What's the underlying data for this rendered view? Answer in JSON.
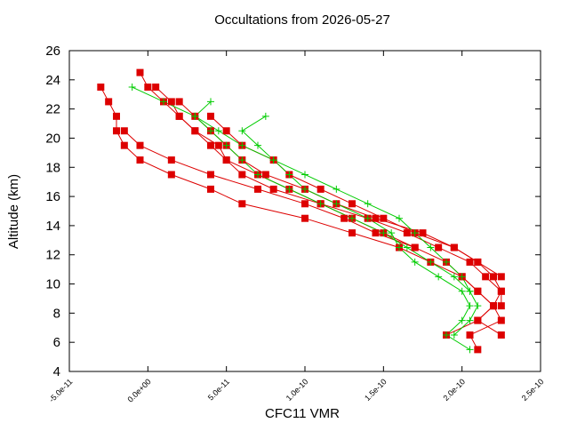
{
  "chart_data": {
    "type": "profile",
    "title": "Occultations from 2026-05-27",
    "xlabel": "CFC11 VMR",
    "ylabel": "Altitude (km)",
    "xlim": [
      -5e-11,
      2.5e-10
    ],
    "ylim": [
      4,
      26
    ],
    "xticks": [
      {
        "value": -5e-11,
        "label": "-5.0e-11"
      },
      {
        "value": 0,
        "label": "0.0e+00"
      },
      {
        "value": 5e-11,
        "label": "5.0e-11"
      },
      {
        "value": 1e-10,
        "label": "1.0e-10"
      },
      {
        "value": 1.5e-10,
        "label": "1.5e-10"
      },
      {
        "value": 2e-10,
        "label": "2.0e-10"
      },
      {
        "value": 2.5e-10,
        "label": "2.5e-10"
      }
    ],
    "yticks": [
      4,
      6,
      8,
      10,
      12,
      14,
      16,
      18,
      20,
      22,
      24,
      26
    ],
    "grid": false,
    "series": [
      {
        "color": "#dd0000",
        "marker": "square",
        "x": [
          -5e-12,
          0.0,
          1e-11,
          2e-11,
          3e-11,
          4e-11,
          5e-11,
          7e-11,
          9e-11,
          1.1e-10,
          1.3e-10,
          1.5e-10,
          1.7e-10,
          1.9e-10,
          2e-10,
          2.1e-10,
          2.2e-10,
          2.1e-10,
          1.9e-10
        ],
        "y": [
          24.5,
          23.5,
          22.5,
          21.5,
          20.5,
          19.5,
          18.5,
          17.5,
          16.5,
          15.5,
          14.5,
          13.5,
          12.5,
          11.5,
          10.5,
          9.5,
          8.5,
          7.5,
          6.5
        ]
      },
      {
        "color": "#dd0000",
        "marker": "square",
        "x": [
          -3e-11,
          -2.5e-11,
          -2e-11,
          -2e-11,
          -1.5e-11,
          -5e-12,
          1.5e-11,
          4e-11,
          6e-11,
          1e-10,
          1.3e-10,
          1.6e-10,
          1.8e-10,
          2e-10,
          2.1e-10,
          2.2e-10,
          2.25e-10,
          2.05e-10,
          2.1e-10
        ],
        "y": [
          23.5,
          22.5,
          21.5,
          20.5,
          19.5,
          18.5,
          17.5,
          16.5,
          15.5,
          14.5,
          13.5,
          12.5,
          11.5,
          10.5,
          9.5,
          8.5,
          7.5,
          6.5,
          5.5
        ]
      },
      {
        "color": "#dd0000",
        "marker": "square",
        "x": [
          5e-12,
          1.5e-11,
          2e-11,
          3e-11,
          4.5e-11,
          5e-11,
          6e-11,
          8e-11,
          1.1e-10,
          1.4e-10,
          1.65e-10,
          1.85e-10,
          2.05e-10,
          2.15e-10,
          2.25e-10,
          2.25e-10
        ],
        "y": [
          23.5,
          22.5,
          21.5,
          20.5,
          19.5,
          18.5,
          17.5,
          16.5,
          15.5,
          14.5,
          13.5,
          12.5,
          11.5,
          10.5,
          9.5,
          8.5
        ]
      },
      {
        "color": "#dd0000",
        "marker": "square",
        "x": [
          2e-11,
          3e-11,
          4e-11,
          5e-11,
          6e-11,
          7.5e-11,
          1e-10,
          1.2e-10,
          1.45e-10,
          1.75e-10,
          1.95e-10,
          2.1e-10,
          2.2e-10,
          2.25e-10,
          2.2e-10,
          2.1e-10,
          2.25e-10
        ],
        "y": [
          22.5,
          21.5,
          20.5,
          19.5,
          18.5,
          17.5,
          16.5,
          15.5,
          14.5,
          13.5,
          12.5,
          11.5,
          10.5,
          9.5,
          8.5,
          7.5,
          6.5
        ]
      },
      {
        "color": "#dd0000",
        "marker": "square",
        "x": [
          4e-11,
          5e-11,
          6e-11,
          8e-11,
          9e-11,
          1.1e-10,
          1.3e-10,
          1.5e-10,
          1.7e-10,
          1.95e-10,
          2.1e-10,
          2.25e-10
        ],
        "y": [
          21.5,
          20.5,
          19.5,
          18.5,
          17.5,
          16.5,
          15.5,
          14.5,
          13.5,
          12.5,
          11.5,
          10.5
        ]
      },
      {
        "color": "#dd0000",
        "marker": "square",
        "x": [
          -1.5e-11,
          -5e-12,
          1.5e-11,
          4e-11,
          7e-11,
          1e-10,
          1.25e-10,
          1.45e-10,
          1.7e-10
        ],
        "y": [
          20.5,
          19.5,
          18.5,
          17.5,
          16.5,
          15.5,
          14.5,
          13.5,
          12.5
        ]
      },
      {
        "color": "#00cc00",
        "marker": "plus",
        "x": [
          -1e-11,
          1e-11,
          3e-11,
          4e-11,
          5e-11,
          6e-11,
          7e-11,
          9e-11,
          1.1e-10,
          1.3e-10,
          1.5e-10,
          1.65e-10,
          1.8e-10,
          1.95e-10,
          2.05e-10,
          2.1e-10,
          2.05e-10,
          1.95e-10
        ],
        "y": [
          23.5,
          22.5,
          21.5,
          20.5,
          19.5,
          18.5,
          17.5,
          16.5,
          15.5,
          14.5,
          13.5,
          12.5,
          11.5,
          10.5,
          9.5,
          8.5,
          7.5,
          6.5
        ]
      },
      {
        "color": "#00cc00",
        "marker": "plus",
        "x": [
          7.5e-11,
          6e-11,
          7e-11,
          8e-11,
          9e-11,
          1e-10,
          1.2e-10,
          1.4e-10,
          1.55e-10,
          1.6e-10,
          1.7e-10,
          1.85e-10,
          2e-10,
          2.05e-10,
          2e-10,
          1.9e-10,
          2.05e-10
        ],
        "y": [
          21.5,
          20.5,
          19.5,
          18.5,
          17.5,
          16.5,
          15.5,
          14.5,
          13.5,
          12.5,
          11.5,
          10.5,
          9.5,
          8.5,
          7.5,
          6.5,
          5.5
        ]
      },
      {
        "color": "#00cc00",
        "marker": "plus",
        "x": [
          4e-11,
          3e-11,
          4.5e-11,
          6e-11,
          8e-11,
          1e-10,
          1.2e-10,
          1.4e-10,
          1.6e-10,
          1.7e-10,
          1.8e-10,
          1.9e-10,
          2e-10,
          2.05e-10
        ],
        "y": [
          22.5,
          21.5,
          20.5,
          19.5,
          18.5,
          17.5,
          16.5,
          15.5,
          14.5,
          13.5,
          12.5,
          11.5,
          10.5,
          9.5
        ]
      }
    ]
  }
}
